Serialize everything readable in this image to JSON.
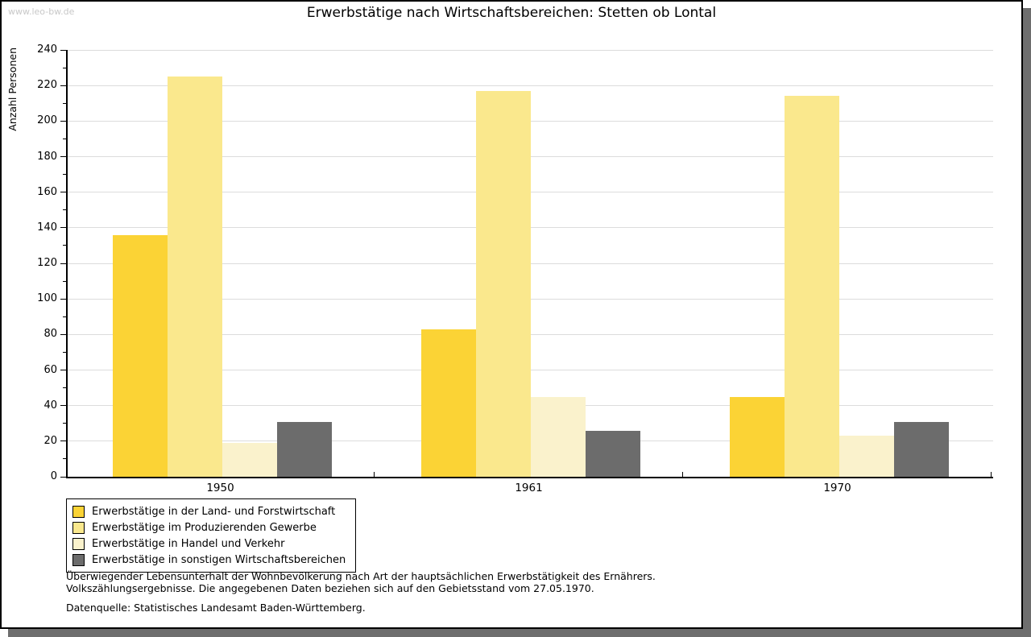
{
  "site": {
    "watermark": "www.leo-bw.de"
  },
  "chart": {
    "title": "Erwerbstätige nach Wirtschaftsbereichen: Stetten ob Lontal",
    "ylabel": "Anzahl Personen"
  },
  "chart_data": {
    "type": "bar",
    "title": "Erwerbstätige nach Wirtschaftsbereichen: Stetten ob Lontal",
    "xlabel": "",
    "ylabel": "Anzahl Personen",
    "categories": [
      "1950",
      "1961",
      "1970"
    ],
    "series": [
      {
        "name": "Erwerbstätige in der Land- und Forstwirtschaft",
        "color": "#fbd335",
        "values": [
          136,
          83,
          45
        ]
      },
      {
        "name": "Erwerbstätige im Produzierenden Gewerbe",
        "color": "#fae88d",
        "values": [
          225,
          217,
          214
        ]
      },
      {
        "name": "Erwerbstätige in Handel und Verkehr",
        "color": "#faf2cc",
        "values": [
          19,
          45,
          23
        ]
      },
      {
        "name": "Erwerbstätige in sonstigen Wirtschaftsbereichen",
        "color": "#6c6c6c",
        "values": [
          31,
          26,
          31
        ]
      }
    ],
    "ylim": [
      0,
      240
    ],
    "ytick_step": 20,
    "yminor_step": 10,
    "grid": true,
    "legend_position": "bottom-left"
  },
  "footnotes": {
    "line1": "Überwiegender Lebensunterhalt der Wohnbevölkerung nach Art der hauptsächlichen Erwerbstätigkeit des Ernährers.",
    "line2": "Volkszählungsergebnisse. Die angegebenen Daten beziehen sich auf den Gebietsstand vom 27.05.1970.",
    "source": "Datenquelle: Statistisches Landesamt Baden-Württemberg."
  },
  "colors": {
    "grid": "#dcdcdc",
    "axis": "#000000",
    "shadow": "#6e6e6e",
    "watermark": "#c8c8c8"
  }
}
